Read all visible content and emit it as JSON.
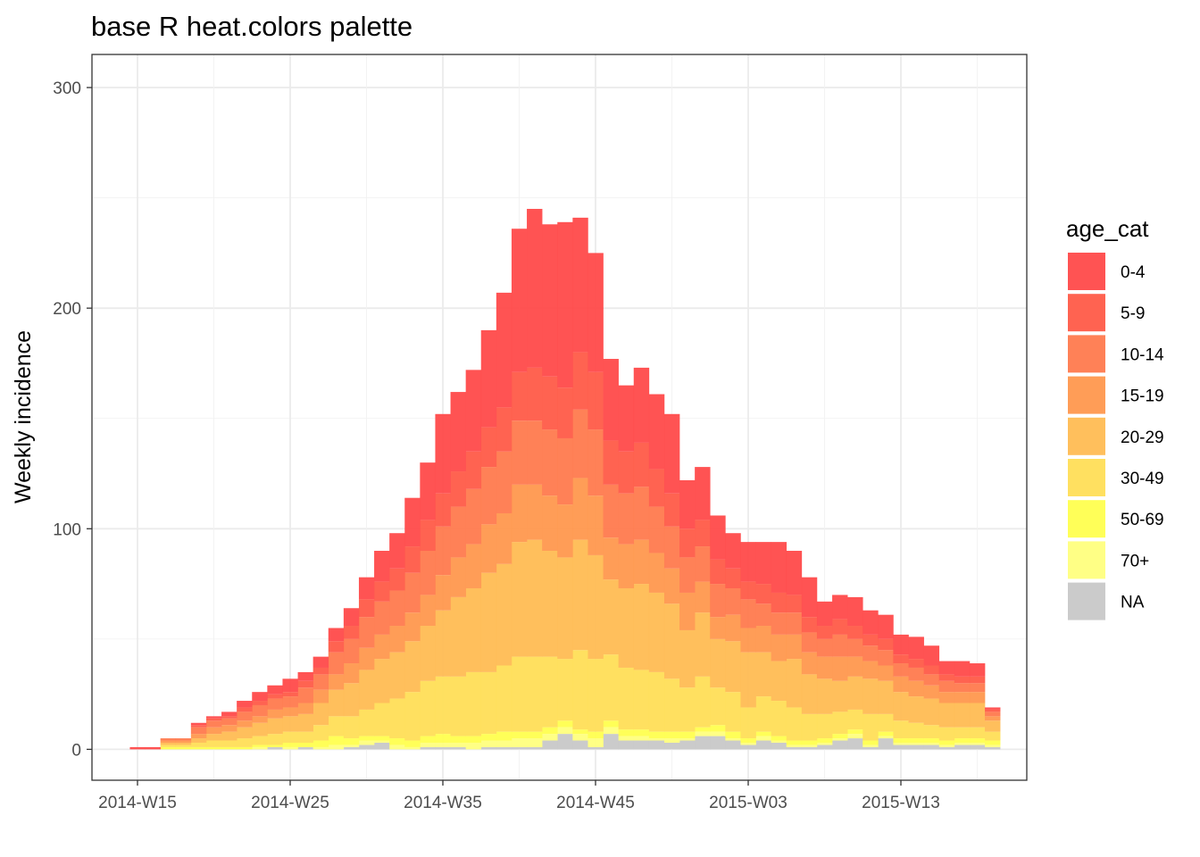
{
  "chart_data": {
    "type": "bar",
    "stacked": true,
    "title": "base R heat.colors palette",
    "xlabel": "",
    "ylabel": "Weekly incidence",
    "ylim": [
      -14,
      315
    ],
    "y_ticks": [
      0,
      100,
      200,
      300
    ],
    "x_tick_labels": [
      "2014-W15",
      "2014-W25",
      "2014-W35",
      "2014-W45",
      "2015-W03",
      "2015-W13"
    ],
    "x_tick_positions": [
      0,
      10,
      20,
      30,
      40,
      50
    ],
    "grid": true,
    "legend": {
      "title": "age_cat",
      "position": "right"
    },
    "categories": [
      "2014-W15",
      "2014-W16",
      "2014-W17",
      "2014-W18",
      "2014-W19",
      "2014-W20",
      "2014-W21",
      "2014-W22",
      "2014-W23",
      "2014-W24",
      "2014-W25",
      "2014-W26",
      "2014-W27",
      "2014-W28",
      "2014-W29",
      "2014-W30",
      "2014-W31",
      "2014-W32",
      "2014-W33",
      "2014-W34",
      "2014-W35",
      "2014-W36",
      "2014-W37",
      "2014-W38",
      "2014-W39",
      "2014-W40",
      "2014-W41",
      "2014-W42",
      "2014-W43",
      "2014-W44",
      "2014-W45",
      "2014-W46",
      "2014-W47",
      "2014-W48",
      "2014-W49",
      "2014-W50",
      "2014-W51",
      "2014-W52",
      "2015-W01",
      "2015-W02",
      "2015-W03",
      "2015-W04",
      "2015-W05",
      "2015-W06",
      "2015-W07",
      "2015-W08",
      "2015-W09",
      "2015-W10",
      "2015-W11",
      "2015-W12",
      "2015-W13",
      "2015-W14",
      "2015-W15",
      "2015-W16",
      "2015-W17",
      "2015-W18",
      "2015-W19"
    ],
    "series": [
      {
        "name": "NA",
        "color": "#C8C8C8",
        "values": [
          0,
          0,
          0,
          0,
          0,
          0,
          0,
          0,
          0,
          1,
          0,
          1,
          0,
          0,
          1,
          2,
          3,
          0,
          0,
          1,
          1,
          1,
          0,
          1,
          1,
          1,
          1,
          4,
          7,
          4,
          1,
          7,
          4,
          4,
          4,
          3,
          4,
          6,
          6,
          4,
          2,
          4,
          3,
          1,
          1,
          2,
          4,
          5,
          1,
          5,
          2,
          2,
          2,
          1,
          2,
          2,
          1
        ]
      },
      {
        "name": "70+",
        "color": "#FFFF7E",
        "values": [
          0,
          0,
          0,
          0,
          0,
          0,
          0,
          0,
          1,
          0,
          1,
          0,
          1,
          2,
          1,
          2,
          1,
          2,
          1,
          2,
          2,
          2,
          3,
          3,
          3,
          4,
          4,
          3,
          3,
          3,
          4,
          3,
          2,
          2,
          1,
          2,
          1,
          2,
          2,
          1,
          1,
          2,
          1,
          1,
          1,
          1,
          1,
          2,
          1,
          1,
          1,
          1,
          1,
          1,
          1,
          1,
          1
        ]
      },
      {
        "name": "50-69",
        "color": "#FFFF4F",
        "values": [
          0,
          0,
          1,
          1,
          1,
          1,
          1,
          1,
          1,
          1,
          2,
          2,
          3,
          4,
          3,
          2,
          2,
          3,
          3,
          3,
          4,
          3,
          3,
          3,
          4,
          3,
          3,
          3,
          3,
          2,
          3,
          3,
          3,
          3,
          3,
          3,
          3,
          2,
          3,
          3,
          2,
          2,
          2,
          2,
          2,
          2,
          2,
          2,
          2,
          2,
          2,
          2,
          2,
          2,
          2,
          2,
          2
        ]
      },
      {
        "name": "30-49",
        "color": "#FFDE57",
        "values": [
          0,
          0,
          1,
          1,
          2,
          3,
          3,
          4,
          4,
          5,
          5,
          5,
          7,
          9,
          10,
          12,
          15,
          18,
          22,
          25,
          26,
          27,
          29,
          28,
          30,
          34,
          34,
          32,
          28,
          36,
          33,
          30,
          28,
          27,
          27,
          24,
          20,
          23,
          17,
          18,
          14,
          16,
          16,
          15,
          12,
          11,
          10,
          9,
          12,
          8,
          8,
          7,
          6,
          6,
          5,
          5,
          4
        ]
      },
      {
        "name": "20-29",
        "color": "#FFBC53",
        "values": [
          0,
          0,
          1,
          1,
          2,
          3,
          4,
          5,
          6,
          7,
          7,
          8,
          10,
          12,
          15,
          18,
          20,
          21,
          23,
          25,
          30,
          36,
          38,
          45,
          46,
          52,
          53,
          48,
          46,
          50,
          47,
          34,
          36,
          39,
          36,
          34,
          26,
          29,
          22,
          23,
          25,
          20,
          18,
          22,
          18,
          16,
          14,
          15,
          16,
          15,
          13,
          12,
          12,
          11,
          11,
          11,
          5
        ]
      },
      {
        "name": "15-19",
        "color": "#FF984E",
        "values": [
          0,
          0,
          1,
          1,
          2,
          3,
          3,
          3,
          3,
          4,
          4,
          5,
          6,
          7,
          9,
          10,
          11,
          12,
          13,
          14,
          16,
          18,
          20,
          22,
          23,
          26,
          25,
          25,
          24,
          28,
          27,
          19,
          20,
          20,
          18,
          16,
          17,
          14,
          10,
          12,
          11,
          12,
          12,
          11,
          10,
          10,
          11,
          9,
          8,
          7,
          7,
          7,
          6,
          5,
          5,
          5,
          2
        ]
      },
      {
        "name": "10-14",
        "color": "#FF7A4E",
        "values": [
          0,
          0,
          1,
          1,
          3,
          3,
          3,
          4,
          5,
          5,
          5,
          7,
          7,
          10,
          11,
          14,
          15,
          16,
          18,
          20,
          22,
          23,
          25,
          26,
          28,
          29,
          29,
          30,
          30,
          31,
          30,
          24,
          23,
          24,
          21,
          19,
          16,
          16,
          15,
          12,
          13,
          10,
          10,
          10,
          9,
          8,
          10,
          8,
          7,
          7,
          6,
          6,
          5,
          5,
          4,
          4,
          2
        ]
      },
      {
        "name": "5-9",
        "color": "#FF5B48",
        "values": [
          0,
          0,
          0,
          0,
          1,
          1,
          1,
          2,
          2,
          2,
          2,
          3,
          3,
          5,
          6,
          8,
          9,
          10,
          12,
          14,
          15,
          16,
          17,
          18,
          20,
          22,
          24,
          24,
          23,
          26,
          26,
          20,
          19,
          20,
          17,
          15,
          13,
          12,
          11,
          9,
          8,
          9,
          9,
          8,
          7,
          6,
          7,
          6,
          5,
          5,
          4,
          4,
          4,
          3,
          3,
          3,
          1
        ]
      },
      {
        "name": "0-4",
        "color": "#FF4A4A",
        "values": [
          1,
          1,
          0,
          0,
          1,
          1,
          2,
          3,
          4,
          4,
          6,
          4,
          5,
          6,
          8,
          10,
          14,
          16,
          22,
          26,
          36,
          36,
          37,
          44,
          52,
          65,
          72,
          69,
          75,
          61,
          54,
          37,
          30,
          34,
          34,
          36,
          22,
          24,
          20,
          16,
          18,
          19,
          23,
          20,
          18,
          11,
          11,
          13,
          11,
          11,
          9,
          10,
          9,
          6,
          7,
          6,
          1
        ]
      }
    ]
  }
}
